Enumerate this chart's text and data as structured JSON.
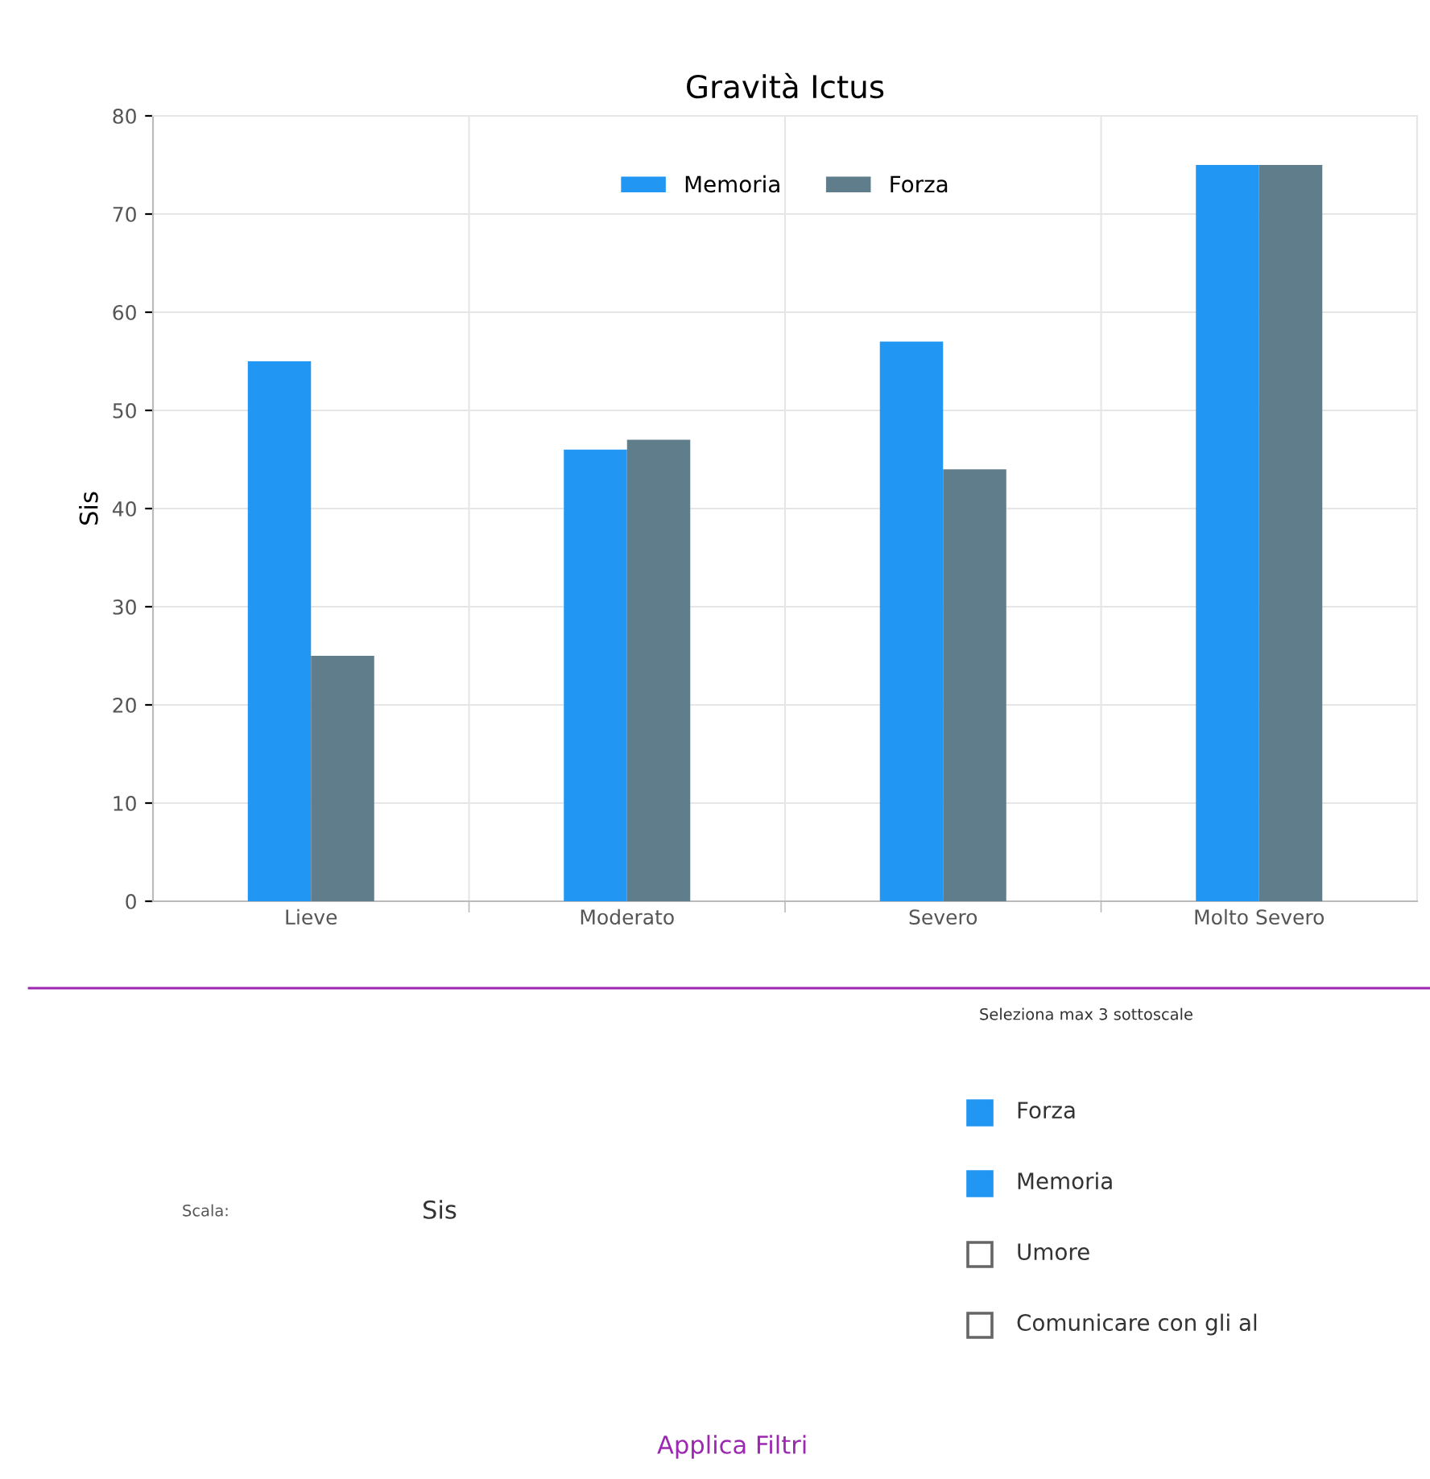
{
  "chart_data": {
    "type": "bar",
    "title": "Gravità Ictus",
    "ylabel": "Sis",
    "categories": [
      "Lieve",
      "Moderato",
      "Severo",
      "Molto Severo"
    ],
    "series": [
      {
        "name": "Memoria",
        "color": "#2196f3",
        "values": [
          55,
          46,
          57,
          75
        ]
      },
      {
        "name": "Forza",
        "color": "#607d8b",
        "values": [
          25,
          47,
          44,
          75
        ]
      }
    ],
    "ylim": [
      0,
      80
    ],
    "yticks": [
      0,
      10,
      20,
      30,
      40,
      50,
      60,
      70,
      80
    ],
    "grid": true,
    "legend": "top",
    "annotations": [
      "Seleziona max 3 sottoscale",
      "Forza",
      "Memoria",
      "Umore",
      "Comunicare con gli al",
      "Scala:",
      "Sis",
      "Applica Filtri"
    ]
  }
}
